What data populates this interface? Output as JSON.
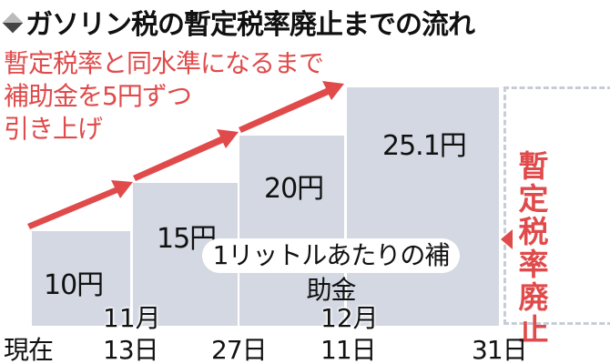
{
  "title": "ガソリン税の暫定税率廃止までの流れ",
  "note": [
    "暫定税率と同水準になるまで",
    "補助金を5円ずつ",
    "引き上げ"
  ],
  "pill_label": "1リットルあたりの補助金",
  "end_label": "暫定税率廃止",
  "colors": {
    "accent": "#e04a4a",
    "bar": "#d3d8e2"
  },
  "chart_data": {
    "type": "bar",
    "title": "ガソリン税の暫定税率廃止までの流れ",
    "categories": [
      "現在",
      "11月13日",
      "27日",
      "12月11日"
    ],
    "values": [
      10,
      15,
      20,
      25.1
    ],
    "labels": [
      "10円",
      "15円",
      "20円",
      "25.1円"
    ],
    "unit": "円",
    "ylabel": "1リットルあたりの補助金",
    "x_ticks": [
      "現在",
      "13日",
      "27日",
      "11日",
      "31日"
    ],
    "month_labels": [
      "11月",
      "12月"
    ],
    "end_event": "暫定税率廃止"
  }
}
